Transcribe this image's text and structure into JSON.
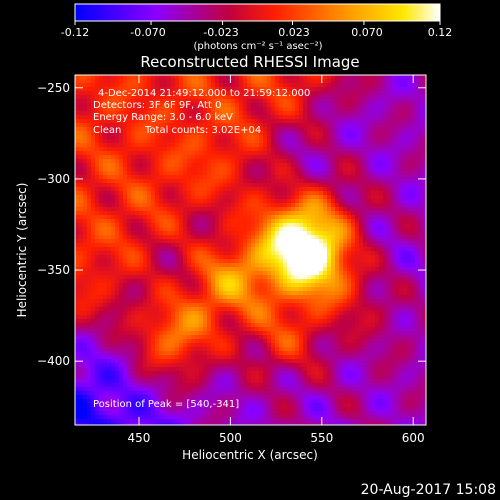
{
  "colorbar": {
    "ticks": [
      "-0.12",
      "-0.070",
      "-0.023",
      "0.023",
      "0.070",
      "0.12"
    ],
    "tick_values": [
      -0.12,
      -0.07,
      -0.023,
      0.023,
      0.07,
      0.12
    ],
    "range": [
      -0.12,
      0.12
    ],
    "unit_label": "(photons cm⁻² s⁻¹ asec⁻²)"
  },
  "plot": {
    "title": "Reconstructed RHESSI Image",
    "info": [
      "4-Dec-2014 21:49:12.000 to 21:59:12.000",
      "Detectors: 3F 6F 9F, Att 0",
      "Energy Range: 3.0 - 6.0 keV",
      "Clean",
      "Total counts: 3.02E+04"
    ],
    "peak_text": "Position of Peak = [540,-341]"
  },
  "timestamp": "20-Aug-2017 15:08",
  "chart_data": {
    "type": "heatmap",
    "title": "Reconstructed RHESSI Image",
    "xlabel": "Heliocentric X (arcsec)",
    "ylabel": "Heliocentric Y (arcsec)",
    "xlim": [
      415,
      607
    ],
    "ylim": [
      -435,
      -243
    ],
    "xticks": [
      450,
      500,
      550,
      600
    ],
    "yticks": [
      -250,
      -300,
      -350,
      -400
    ],
    "colormap": "hot (blue-purple-red-orange-yellow-white)",
    "color_range": [
      -0.12,
      0.12
    ],
    "peak": [
      540,
      -341
    ],
    "sources": [
      {
        "x": 540,
        "y": -341,
        "value": 0.12
      },
      {
        "x": 500,
        "y": -355,
        "value": 0.1
      },
      {
        "x": 470,
        "y": -385,
        "value": 0.09
      },
      {
        "x": 530,
        "y": -385,
        "value": 0.06
      },
      {
        "x": 550,
        "y": -320,
        "value": 0.05
      }
    ]
  }
}
